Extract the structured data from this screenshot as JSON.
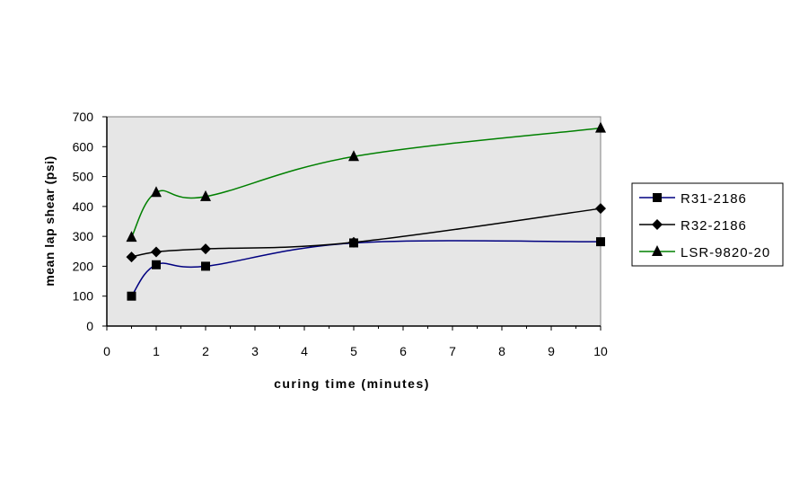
{
  "chart_data": {
    "type": "line",
    "title": "",
    "xlabel": "curing time (minutes)",
    "ylabel": "mean lap shear (psi)",
    "xlim": [
      0,
      10
    ],
    "ylim": [
      0,
      700
    ],
    "xticks": [
      0,
      1,
      2,
      3,
      4,
      5,
      6,
      7,
      8,
      9,
      10
    ],
    "yticks": [
      0,
      100,
      200,
      300,
      400,
      500,
      600,
      700
    ],
    "grid": false,
    "plot_background": "#e6e6e6",
    "smoothed": true,
    "legend_position": "right",
    "series": [
      {
        "name": "R31-2186",
        "color": "#000080",
        "marker": "square",
        "x": [
          0.5,
          1,
          2,
          5,
          10
        ],
        "y": [
          100,
          205,
          200,
          278,
          282
        ]
      },
      {
        "name": "R32-2186",
        "color": "#000000",
        "marker": "diamond",
        "x": [
          0.5,
          1,
          2,
          5,
          10
        ],
        "y": [
          231,
          248,
          258,
          280,
          393
        ]
      },
      {
        "name": "LSR-9820-20",
        "color": "#008000",
        "marker": "triangle",
        "x": [
          0.5,
          1,
          2,
          5,
          10
        ],
        "y": [
          297,
          447,
          433,
          567,
          662
        ]
      }
    ]
  }
}
